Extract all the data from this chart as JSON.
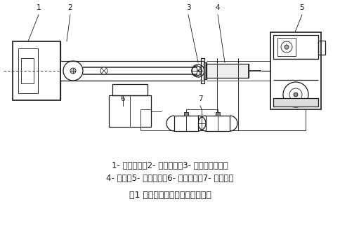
{
  "title": "图1 液压自动张紧装置结构示意图",
  "caption_line1": "1- 张紧滚筒；2- 张紧小车；3- 钢丝绳固定端；",
  "caption_line2": "4- 油缸；5- 电动绞车；6- 液压泵站；7- 蓄能器件",
  "bg_color": "#ffffff",
  "line_color": "#1a1a1a",
  "label_color": "#1a1a1a",
  "font_size_caption": 8.5,
  "font_size_title": 9,
  "font_size_label": 7.5
}
